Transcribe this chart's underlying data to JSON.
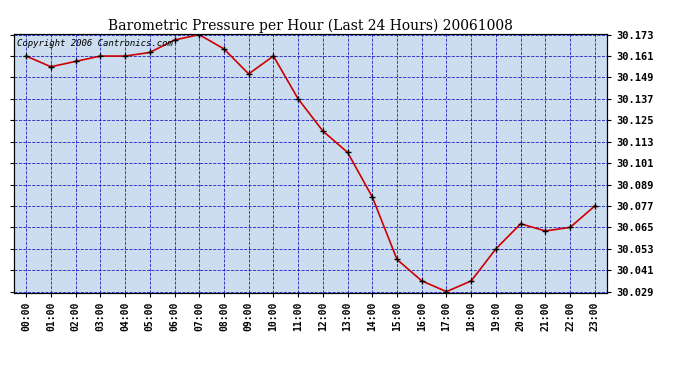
{
  "title": "Barometric Pressure per Hour (Last 24 Hours) 20061008",
  "copyright": "Copyright 2006 Cantronics.com",
  "hours": [
    0,
    1,
    2,
    3,
    4,
    5,
    6,
    7,
    8,
    9,
    10,
    11,
    12,
    13,
    14,
    15,
    16,
    17,
    18,
    19,
    20,
    21,
    22,
    23
  ],
  "hour_labels": [
    "00:00",
    "01:00",
    "02:00",
    "03:00",
    "04:00",
    "05:00",
    "06:00",
    "07:00",
    "08:00",
    "09:00",
    "10:00",
    "11:00",
    "12:00",
    "13:00",
    "14:00",
    "15:00",
    "16:00",
    "17:00",
    "18:00",
    "19:00",
    "20:00",
    "21:00",
    "22:00",
    "23:00"
  ],
  "values": [
    30.161,
    30.155,
    30.158,
    30.161,
    30.161,
    30.163,
    30.17,
    30.173,
    30.165,
    30.151,
    30.161,
    30.137,
    30.119,
    30.107,
    30.082,
    30.047,
    30.035,
    30.029,
    30.035,
    30.053,
    30.067,
    30.063,
    30.065,
    30.077
  ],
  "ylim_min": 30.029,
  "ylim_max": 30.173,
  "ytick_step": 0.012,
  "line_color": "#cc0000",
  "marker_color": "#000000",
  "bg_color": "#ffffff",
  "plot_bg_color": "#ccddf0",
  "grid_color": "#0000bb",
  "title_color": "#000000",
  "copyright_color": "#000000",
  "title_fontsize": 10,
  "copyright_fontsize": 6.5,
  "tick_fontsize": 7,
  "ytick_fontsize": 7.5
}
